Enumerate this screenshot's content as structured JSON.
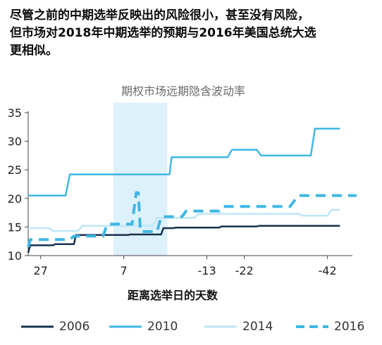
{
  "headline": {
    "line1": "尽管之前的中期选举反映出的风险很小，甚至没有风险，",
    "line2": "但市场对2018年中期选举的预期与2016年美国总统大选",
    "line3": "更相似。"
  },
  "chart_data": {
    "type": "line",
    "title": "期权市场远期隐含波动率",
    "xlabel": "距离选举日的天数",
    "ylabel": "",
    "x_direction": "reversed",
    "xlim": [
      30,
      -48
    ],
    "ylim": [
      10,
      35
    ],
    "x_ticks": [
      27,
      7,
      -13,
      -22,
      -42
    ],
    "x_tick_labels": [
      "27",
      "7",
      "-13",
      "-22",
      "-42"
    ],
    "y_ticks": [
      10,
      15,
      20,
      25,
      30,
      35
    ],
    "y_tick_labels": [
      "10",
      "15",
      "20",
      "25",
      "30",
      "35"
    ],
    "grid": false,
    "legend_position": "bottom",
    "highlight_band": {
      "x_from": 9.5,
      "x_to": -3.5,
      "color": "#ddf1fb"
    },
    "series": [
      {
        "name": "2006",
        "color": "#17324d",
        "dash": false,
        "points": [
          [
            30,
            10.5
          ],
          [
            29.5,
            11.8
          ],
          [
            24,
            11.8
          ],
          [
            23.5,
            12
          ],
          [
            19,
            12
          ],
          [
            18.5,
            13.6
          ],
          [
            6,
            13.6
          ],
          [
            5.5,
            13.7
          ],
          [
            -2,
            13.7
          ],
          [
            -2.5,
            14.8
          ],
          [
            -5,
            14.8
          ],
          [
            -5.5,
            14.9
          ],
          [
            -16,
            14.9
          ],
          [
            -16.5,
            15.1
          ],
          [
            -25,
            15.1
          ],
          [
            -25.5,
            15.2
          ],
          [
            -45,
            15.2
          ]
        ]
      },
      {
        "name": "2010",
        "color": "#3fb7e4",
        "dash": false,
        "points": [
          [
            30,
            20.5
          ],
          [
            21,
            20.5
          ],
          [
            20,
            24.2
          ],
          [
            -4,
            24.2
          ],
          [
            -4.5,
            27.2
          ],
          [
            -18,
            27.2
          ],
          [
            -19,
            28.5
          ],
          [
            -25,
            28.5
          ],
          [
            -26,
            27.5
          ],
          [
            -38,
            27.5
          ],
          [
            -39,
            32.2
          ],
          [
            -45,
            32.2
          ]
        ]
      },
      {
        "name": "2014",
        "color": "#bfe6f6",
        "dash": false,
        "points": [
          [
            30,
            14.8
          ],
          [
            25,
            14.8
          ],
          [
            24,
            14.3
          ],
          [
            18,
            14.3
          ],
          [
            17,
            15.2
          ],
          [
            0,
            15.2
          ],
          [
            -1,
            16.6
          ],
          [
            -10,
            16.6
          ],
          [
            -11,
            17.3
          ],
          [
            -35,
            17.3
          ],
          [
            -36,
            17
          ],
          [
            -42,
            17
          ],
          [
            -43,
            18
          ],
          [
            -45,
            18
          ]
        ]
      },
      {
        "name": "2016",
        "color": "#3fb7e4",
        "dash": true,
        "points": [
          [
            30,
            11.5
          ],
          [
            29.5,
            12.8
          ],
          [
            20,
            12.8
          ],
          [
            19,
            13.4
          ],
          [
            12,
            13.4
          ],
          [
            11,
            15.5
          ],
          [
            5,
            15.5
          ],
          [
            4,
            21
          ],
          [
            3.5,
            21
          ],
          [
            3,
            14.2
          ],
          [
            -1,
            14.2
          ],
          [
            -2,
            16.8
          ],
          [
            -7,
            16.8
          ],
          [
            -8,
            17.8
          ],
          [
            -16,
            17.8
          ],
          [
            -17,
            18.6
          ],
          [
            -33,
            18.6
          ],
          [
            -35,
            20.5
          ],
          [
            -49,
            20.5
          ]
        ]
      }
    ]
  }
}
